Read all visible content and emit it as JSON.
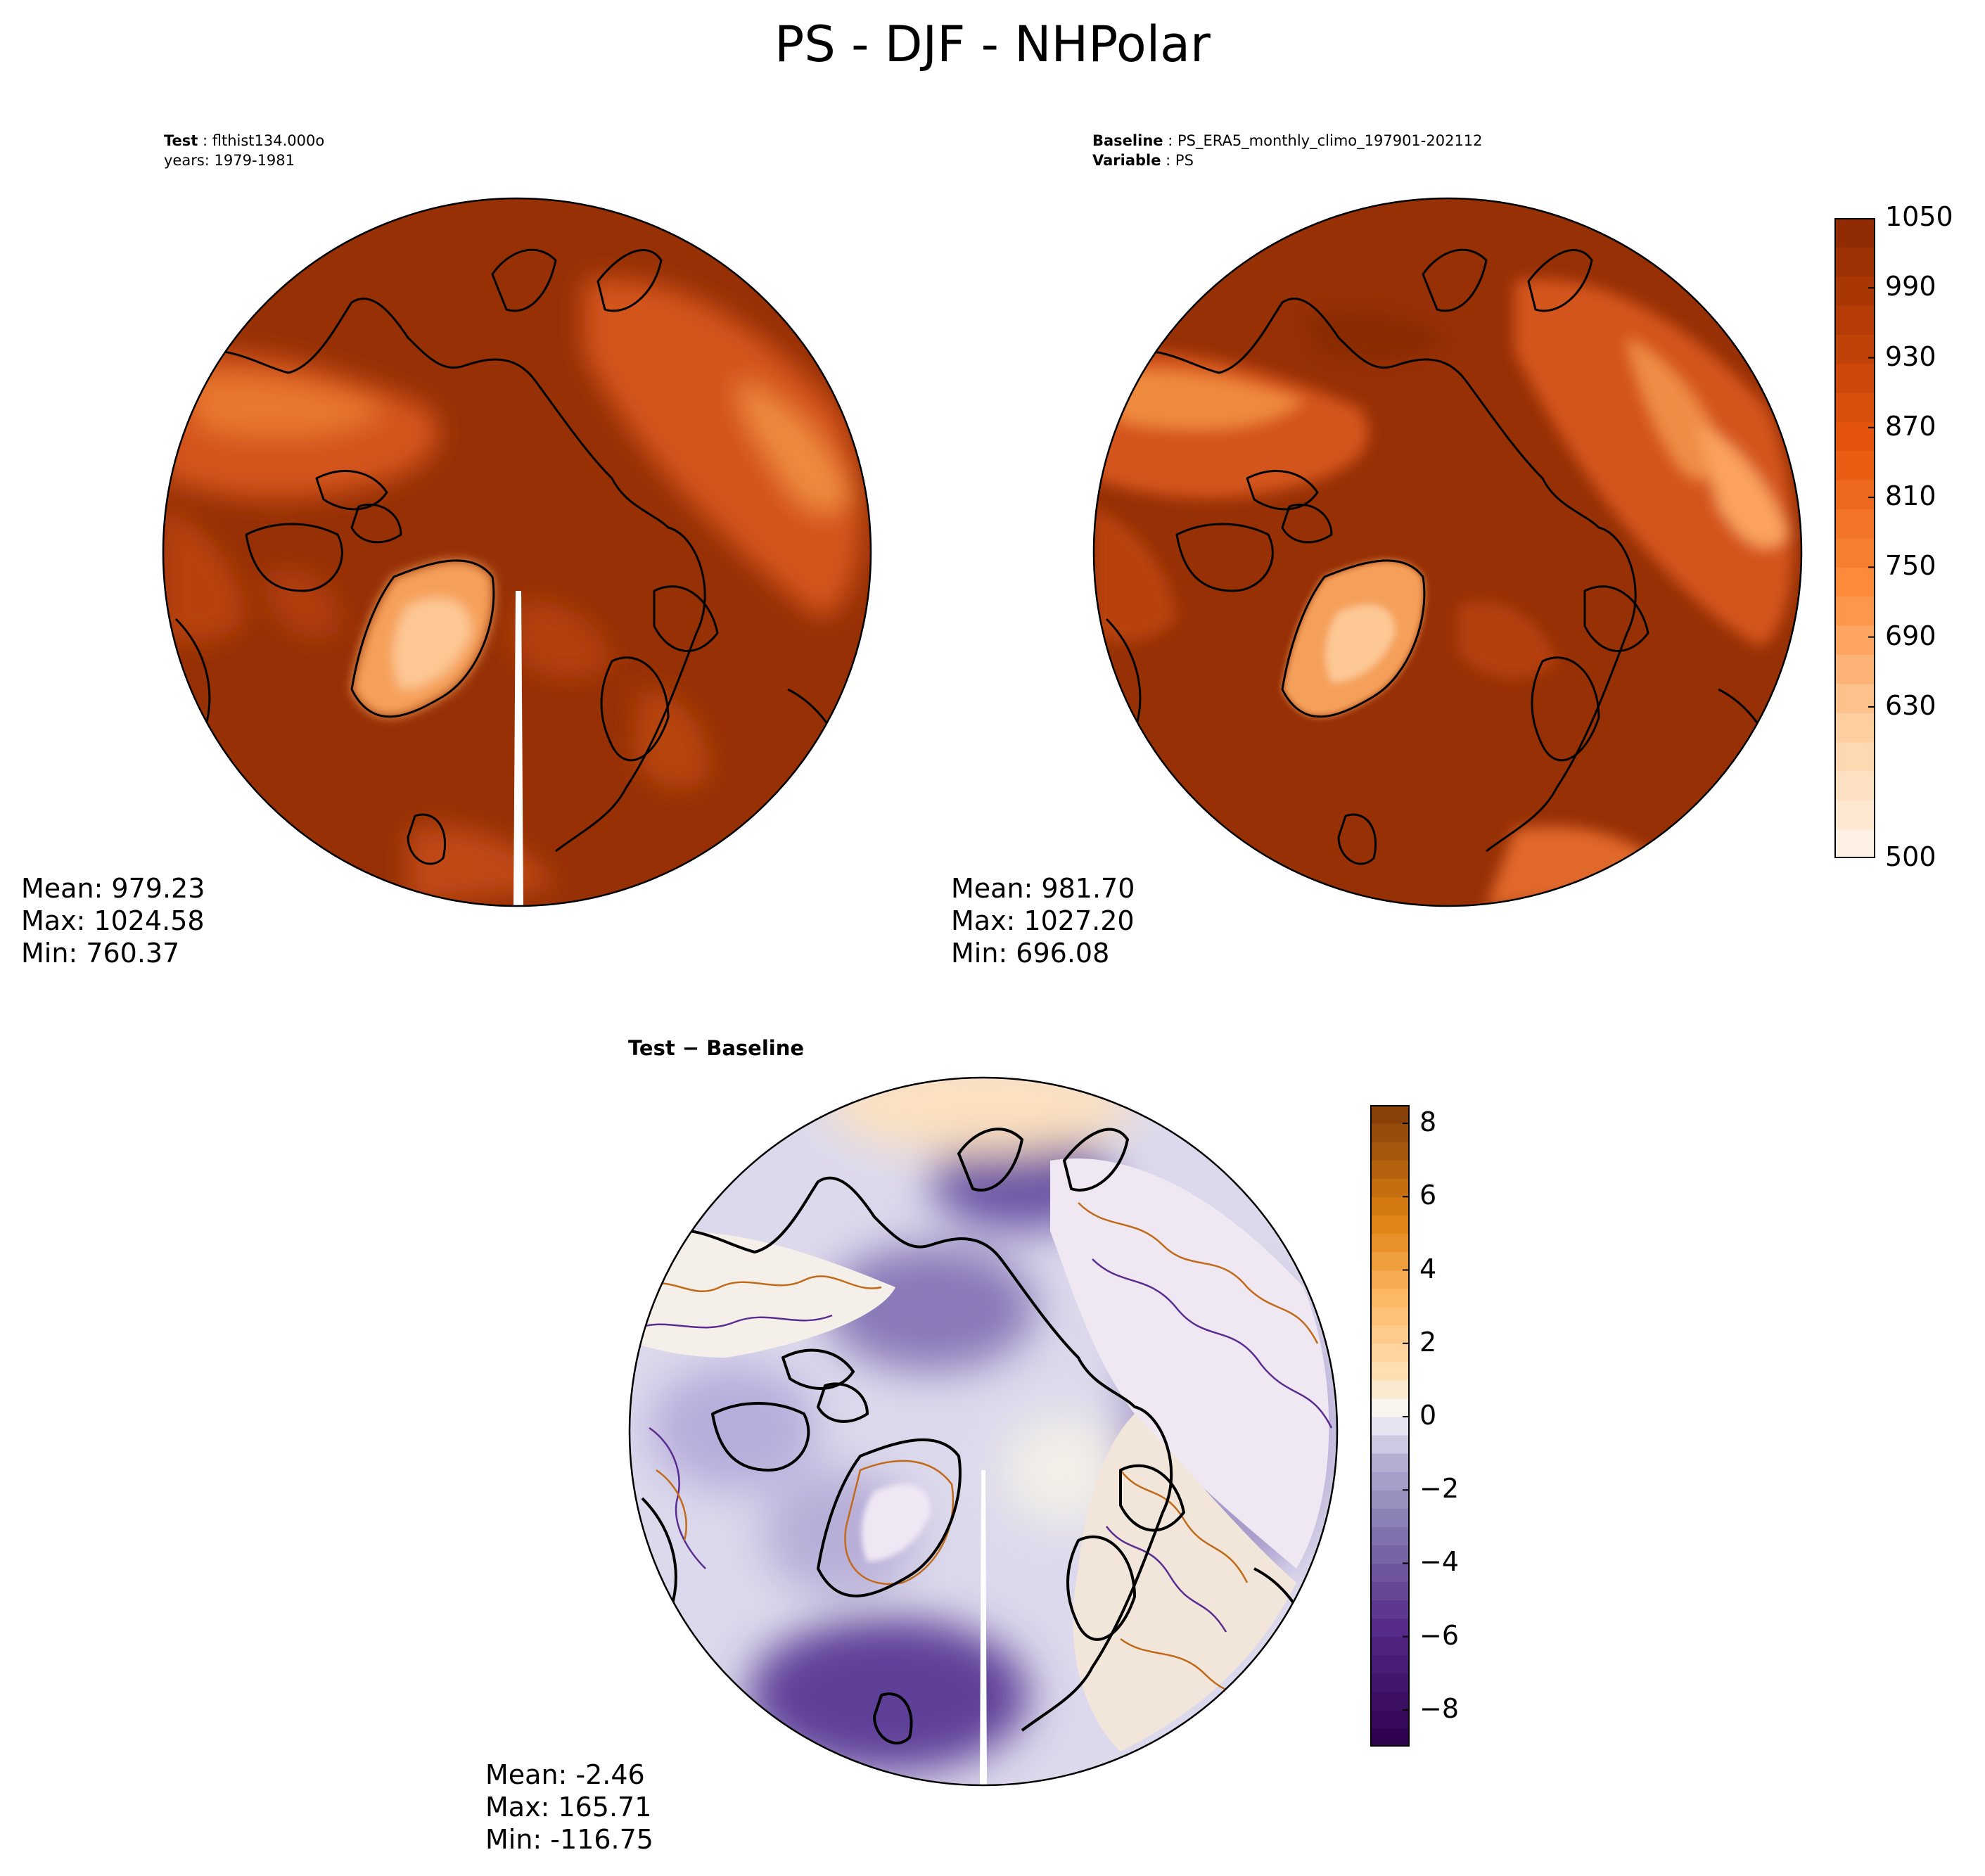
{
  "title": "PS - DJF - NHPolar",
  "panels": {
    "test": {
      "label_key": "Test",
      "label_value": "flthist134.000o",
      "years_line": "years: 1979-1981",
      "stats": {
        "mean": "Mean: 979.23",
        "max": "Max: 1024.58",
        "min": "Min: 760.37"
      }
    },
    "baseline": {
      "label_key": "Baseline",
      "label_value": "PS_ERA5_monthly_climo_197901-202112",
      "var_key": "Variable",
      "var_value": "PS",
      "stats": {
        "mean": "Mean: 981.70",
        "max": "Max: 1027.20",
        "min": "Min: 696.08"
      }
    },
    "diff": {
      "label": "Test − Baseline",
      "stats": {
        "mean": "Mean: -2.46",
        "max": "Max: 165.71",
        "min": "Min: -116.75"
      }
    }
  },
  "chart_data": [
    {
      "type": "heatmap",
      "name": "Test",
      "projection": "north polar stereographic",
      "stats": {
        "mean": 979.23,
        "max": 1024.58,
        "min": 760.37
      },
      "colorbar": {
        "range": [
          500,
          1050
        ],
        "ticks": [
          "1050",
          "990",
          "930",
          "870",
          "810",
          "750",
          "690",
          "630",
          "500"
        ],
        "colormap": "Oranges"
      }
    },
    {
      "type": "heatmap",
      "name": "Baseline",
      "projection": "north polar stereographic",
      "stats": {
        "mean": 981.7,
        "max": 1027.2,
        "min": 696.08
      },
      "colorbar": {
        "range": [
          500,
          1050
        ],
        "ticks": [
          "1050",
          "990",
          "930",
          "870",
          "810",
          "750",
          "690",
          "630",
          "500"
        ],
        "colormap": "Oranges"
      }
    },
    {
      "type": "heatmap",
      "name": "Test − Baseline",
      "projection": "north polar stereographic",
      "stats": {
        "mean": -2.46,
        "max": 165.71,
        "min": -116.75
      },
      "colorbar": {
        "range": [
          -9,
          8.5
        ],
        "ticks": [
          "8",
          "6",
          "4",
          "2",
          "0",
          "−2",
          "−4",
          "−6",
          "−8"
        ],
        "colormap": "PuOr (purple negative, orange positive)"
      }
    }
  ],
  "colors": {
    "land_dark": "#973005",
    "orange_mid": "#d95a1a",
    "orange_light": "#fdae6b",
    "purple_dark": "#4a1a7a",
    "purple_light": "#d8d4ea"
  }
}
